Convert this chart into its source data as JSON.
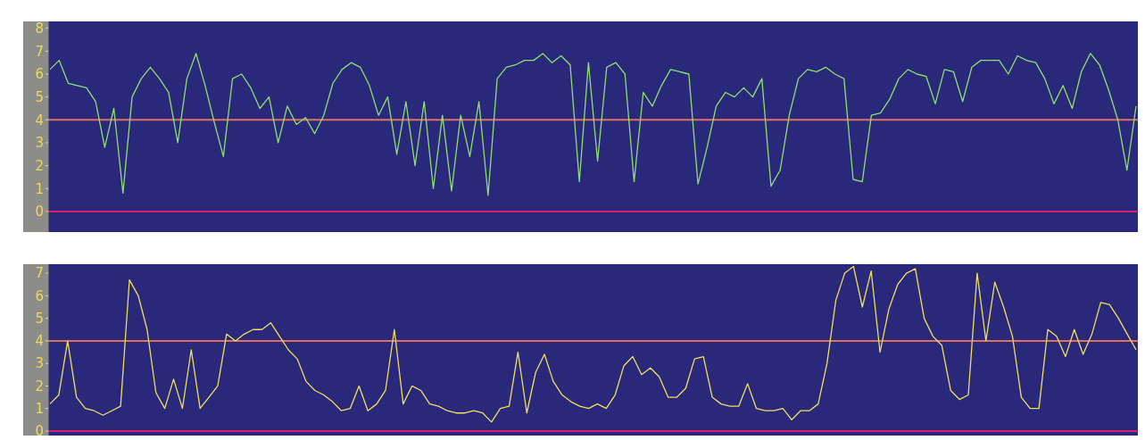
{
  "chart_data": [
    {
      "type": "line",
      "categories": [
        null,
        null,
        null,
        null,
        null,
        null,
        null,
        null,
        null,
        null,
        null,
        null,
        null,
        null,
        null,
        null,
        null,
        null,
        null,
        null,
        null,
        null,
        null,
        null,
        null,
        null,
        null,
        null,
        null,
        null,
        null,
        null,
        null,
        null,
        null,
        null,
        null,
        null,
        null,
        null,
        null,
        null,
        null,
        null,
        null,
        null,
        null,
        null,
        null,
        null,
        null,
        null,
        null,
        null,
        null,
        null,
        null,
        null,
        null,
        null,
        null,
        null,
        null,
        null,
        null,
        null,
        null,
        null,
        null,
        null,
        null,
        null,
        null,
        null,
        null,
        null,
        null,
        null,
        null,
        null,
        null,
        null,
        null,
        null,
        null,
        null,
        null,
        null,
        null,
        null,
        null,
        null,
        null,
        null,
        null,
        null,
        null,
        null,
        null,
        null,
        null,
        null,
        null,
        null,
        null,
        null,
        null,
        null,
        null,
        null,
        null,
        null,
        null,
        null,
        null,
        null,
        null,
        null,
        null,
        null
      ],
      "series": [
        {
          "color": "#8ee070",
          "values": [
            6.2,
            6.6,
            5.6,
            5.5,
            5.4,
            4.8,
            2.8,
            4.5,
            0.8,
            5,
            5.8,
            6.3,
            5.8,
            5.2,
            3,
            5.8,
            6.9,
            5.5,
            3.9,
            2.4,
            5.8,
            6,
            5.4,
            4.5,
            5,
            3,
            4.6,
            3.8,
            4.1,
            3.4,
            4.2,
            5.6,
            6.2,
            6.5,
            6.3,
            5.5,
            4.2,
            5,
            2.5,
            4.8,
            2,
            4.8,
            1,
            4.2,
            0.9,
            4.2,
            2.4,
            4.8,
            0.7,
            5.8,
            6.3,
            6.4,
            6.6,
            6.6,
            6.9,
            6.5,
            6.8,
            6.4,
            1.3,
            6.5,
            2.2,
            6.3,
            6.5,
            6.0,
            1.3,
            5.2,
            4.6,
            5.5,
            6.2,
            6.1,
            6.0,
            1.2,
            2.8,
            4.6,
            5.2,
            5.0,
            5.4,
            5.0,
            5.8,
            1.1,
            1.8,
            4.2,
            5.8,
            6.2,
            6.1,
            6.3,
            6.0,
            5.8,
            1.4,
            1.3,
            4.2,
            4.3,
            4.9,
            5.8,
            6.2,
            6.0,
            5.9,
            4.7,
            6.2,
            6.1,
            4.8,
            6.3,
            6.6,
            6.6,
            6.6,
            6.0,
            6.8,
            6.6,
            6.5,
            5.8,
            4.7,
            5.5,
            4.5,
            6.1,
            6.9,
            6.4,
            5.3,
            4.0,
            1.8,
            4.6
          ]
        }
      ],
      "ylim": [
        -0.9,
        8.3
      ],
      "yticks": [
        0,
        1,
        2,
        3,
        4,
        5,
        6,
        7,
        8
      ],
      "tick_labels": "y",
      "ref_lines": [
        {
          "axis": "y",
          "value": 4,
          "color": "#e07060"
        },
        {
          "axis": "y",
          "value": 0,
          "color": "#d8206c"
        }
      ]
    },
    {
      "type": "line",
      "categories": [
        null,
        null,
        null,
        null,
        null,
        null,
        null,
        null,
        null,
        null,
        null,
        null,
        null,
        null,
        null,
        null,
        null,
        null,
        null,
        null,
        null,
        null,
        null,
        null,
        null,
        null,
        null,
        null,
        null,
        null,
        null,
        null,
        null,
        null,
        null,
        null,
        null,
        null,
        null,
        null,
        null,
        null,
        null,
        null,
        null,
        null,
        null,
        null,
        null,
        null,
        null,
        null,
        null,
        null,
        null,
        null,
        null,
        null,
        null,
        null,
        null,
        null,
        null,
        null,
        null,
        null,
        null,
        null,
        null,
        null,
        null,
        null,
        null,
        null,
        null,
        null,
        null,
        null,
        null,
        null,
        null,
        null,
        null,
        null,
        null,
        null,
        null,
        null,
        null,
        null,
        null,
        null,
        null,
        null,
        null,
        null,
        null,
        null,
        null,
        null,
        null,
        null,
        null,
        null,
        null,
        null,
        null,
        null,
        null,
        null,
        null,
        null,
        null,
        null,
        null,
        null,
        null,
        null,
        null,
        null,
        null,
        null,
        null,
        null
      ],
      "series": [
        {
          "color": "#f0e060",
          "values": [
            1.2,
            1.6,
            4.0,
            1.5,
            1.0,
            0.9,
            0.7,
            0.9,
            1.1,
            6.7,
            6.0,
            4.5,
            1.7,
            1.0,
            2.3,
            1.0,
            3.6,
            1.0,
            1.5,
            2.0,
            4.3,
            4.0,
            4.3,
            4.5,
            4.5,
            4.8,
            4.2,
            3.6,
            3.2,
            2.2,
            1.8,
            1.6,
            1.3,
            0.9,
            1.0,
            2.0,
            0.9,
            1.2,
            1.8,
            4.5,
            1.2,
            2.0,
            1.8,
            1.2,
            1.1,
            0.9,
            0.8,
            0.8,
            0.9,
            0.8,
            0.4,
            1.0,
            1.1,
            3.5,
            0.8,
            2.6,
            3.4,
            2.2,
            1.6,
            1.3,
            1.1,
            1.0,
            1.2,
            1.0,
            1.6,
            2.9,
            3.3,
            2.5,
            2.8,
            2.4,
            1.5,
            1.5,
            1.9,
            3.2,
            3.3,
            1.5,
            1.2,
            1.1,
            1.1,
            2.1,
            1.0,
            0.9,
            0.9,
            1.0,
            0.5,
            0.9,
            0.9,
            1.2,
            3.0,
            5.8,
            7.0,
            7.3,
            5.5,
            7.1,
            3.5,
            5.4,
            6.5,
            7.0,
            7.2,
            5.0,
            4.2,
            3.8,
            1.8,
            1.4,
            1.6,
            7.0,
            4.0,
            6.6,
            5.5,
            4.2,
            1.5,
            1.0,
            1.0,
            4.5,
            4.2,
            3.3,
            4.5,
            3.4,
            4.3,
            5.7,
            5.6,
            5.0,
            4.3,
            3.6
          ]
        }
      ],
      "ylim": [
        -0.2,
        7.4
      ],
      "yticks": [
        0,
        1,
        2,
        3,
        4,
        5,
        6,
        7
      ],
      "tick_labels": "y",
      "ref_lines": [
        {
          "axis": "y",
          "value": 4,
          "color": "#e07060"
        },
        {
          "axis": "y",
          "value": 0,
          "color": "#d8206c"
        }
      ]
    }
  ]
}
